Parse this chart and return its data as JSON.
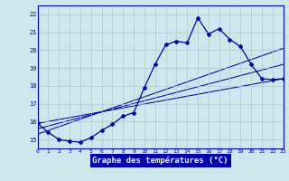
{
  "xlabel": "Graphe des températures (°C)",
  "background_color": "#cce8ee",
  "grid_color": "#a8cccc",
  "line_color": "#0000aa",
  "label_bg": "#0000aa",
  "label_fg": "#ffffff",
  "xlim": [
    0,
    23
  ],
  "ylim": [
    14.5,
    22.5
  ],
  "yticks": [
    15,
    16,
    17,
    18,
    19,
    20,
    21,
    22
  ],
  "xticks": [
    0,
    1,
    2,
    3,
    4,
    5,
    6,
    7,
    8,
    9,
    10,
    11,
    12,
    13,
    14,
    15,
    16,
    17,
    18,
    19,
    20,
    21,
    22,
    23
  ],
  "xtick_labels": [
    "0",
    "1",
    "2",
    "3",
    "4",
    "5",
    "6",
    "7",
    "8",
    "9",
    "10",
    "11",
    "12",
    "13",
    "14",
    "15",
    "16",
    "17",
    "18",
    "19",
    "20",
    "21",
    "22",
    "23"
  ],
  "hours": [
    0,
    1,
    2,
    3,
    4,
    5,
    6,
    7,
    8,
    9,
    10,
    11,
    12,
    13,
    14,
    15,
    16,
    17,
    18,
    19,
    20,
    21,
    22,
    23
  ],
  "temp": [
    15.9,
    15.4,
    15.0,
    14.9,
    14.85,
    15.1,
    15.5,
    15.85,
    16.3,
    16.5,
    17.9,
    19.2,
    20.3,
    20.5,
    20.4,
    21.8,
    20.9,
    21.2,
    20.6,
    20.2,
    19.2,
    18.4,
    18.35,
    18.4
  ],
  "trend_lines": [
    {
      "x": [
        0,
        23
      ],
      "y": [
        15.9,
        18.4
      ]
    },
    {
      "x": [
        0,
        23
      ],
      "y": [
        15.6,
        19.2
      ]
    },
    {
      "x": [
        0,
        23
      ],
      "y": [
        15.3,
        20.1
      ]
    }
  ]
}
